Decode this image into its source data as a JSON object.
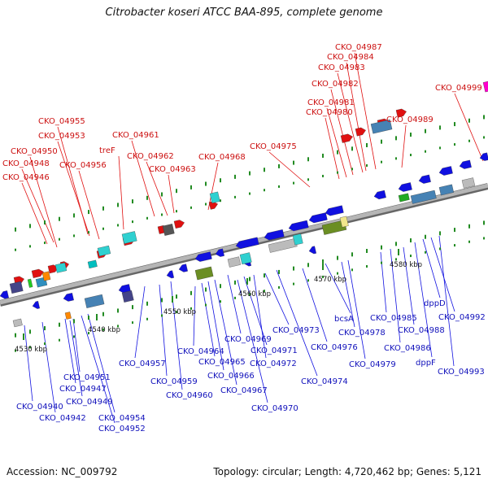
{
  "header": {
    "title": "Citrobacter koseri ATCC BAA-895, complete genome"
  },
  "footer": {
    "accession": "Accession: NC_009792",
    "stats": "Topology: circular; Length: 4,720,462 bp; Genes: 5,121"
  },
  "colors": {
    "forward": "#e01010",
    "reverse": "#1010e0",
    "forward_label": "#cc1111",
    "reverse_label": "#1111bb",
    "backbone": "#888888",
    "tick": "#228b22"
  },
  "top_labels": [
    "CKO_04946",
    "CKO_04948",
    "CKO_04950",
    "CKO_04953",
    "CKO_04955",
    "CKO_04956",
    "treF",
    "CKO_04961",
    "CKO_04962",
    "CKO_04963",
    "CKO_04968",
    "CKO_04975",
    "CKO_04980",
    "CKO_04981",
    "CKO_04982",
    "CKO_04983",
    "CKO_04984",
    "CKO_04987",
    "CKO_04989",
    "CKO_04999"
  ],
  "bottom_labels": [
    "CKO_04940",
    "CKO_04942",
    "CKO_04947",
    "CKO_04949",
    "CKO_04951",
    "CKO_04952",
    "CKO_04954",
    "CKO_04957",
    "CKO_04959",
    "CKO_04960",
    "CKO_04964",
    "CKO_04965",
    "CKO_04966",
    "CKO_04967",
    "CKO_04969",
    "CKO_04970",
    "CKO_04971",
    "CKO_04972",
    "CKO_04973",
    "CKO_04974",
    "CKO_04976",
    "bcsA",
    "CKO_04978",
    "CKO_04979",
    "CKO_04985",
    "CKO_04986",
    "CKO_04988",
    "dppF",
    "dppD",
    "CKO_04992",
    "CKO_04993"
  ],
  "scale_labels": [
    "4530 kbp",
    "4540 kbp",
    "4550 kbp",
    "4560 kbp",
    "4570 kbp",
    "4580 kbp"
  ]
}
